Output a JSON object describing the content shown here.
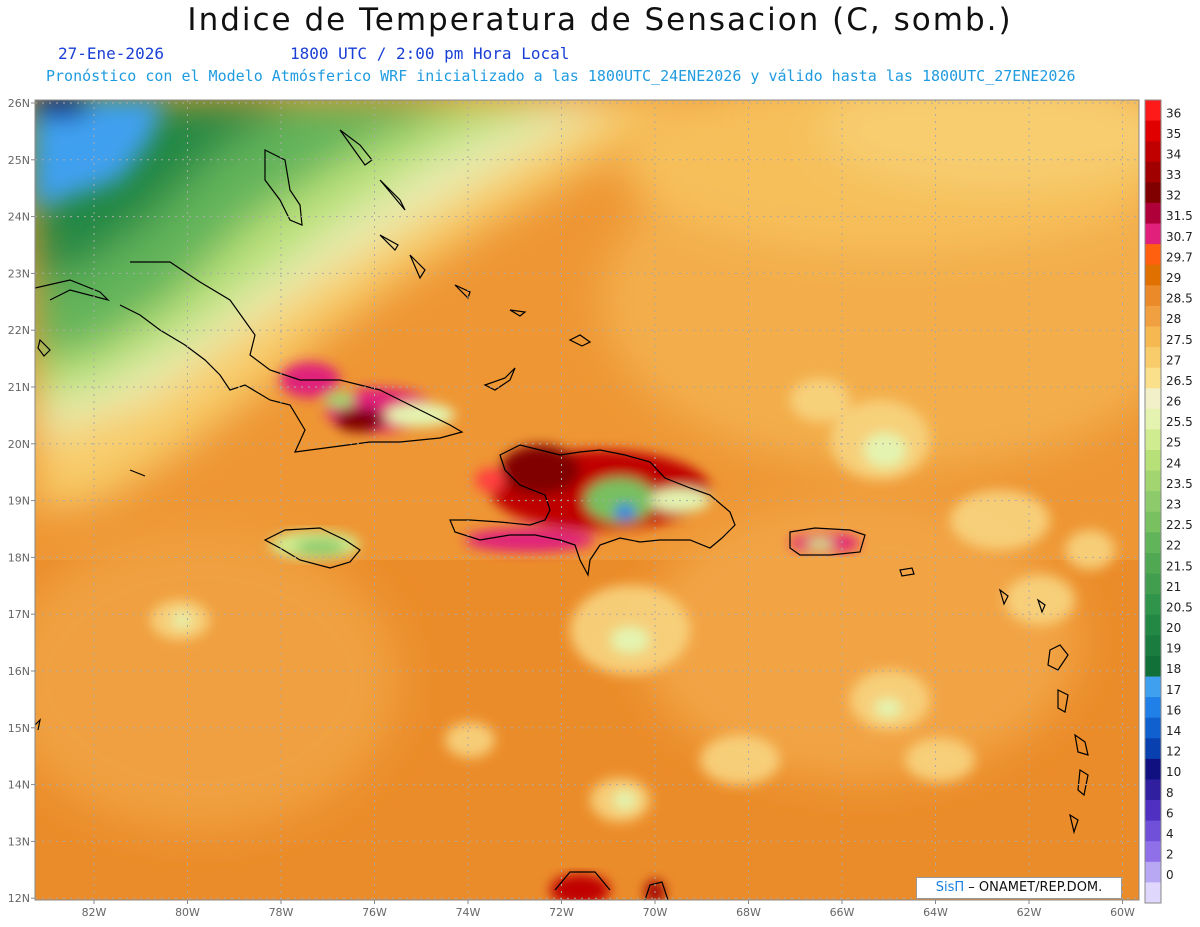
{
  "header": {
    "title": "Indice de Temperatura de Sensacion (C, somb.)",
    "date": "27-Ene-2026",
    "time": "1800 UTC / 2:00 pm Hora Local",
    "model_info": "Pronóstico con el Modelo Atmósferico WRF inicializado a las 1800UTC_24ENE2026 y válido hasta las  1800UTC_27ENE2026"
  },
  "map": {
    "lat_labels": [
      "26N",
      "25N",
      "24N",
      "23N",
      "22N",
      "21N",
      "20N",
      "19N",
      "18N",
      "17N",
      "16N",
      "15N",
      "14N",
      "13N",
      "12N"
    ],
    "lon_labels": [
      "82W",
      "80W",
      "78W",
      "76W",
      "74W",
      "72W",
      "70W",
      "68W",
      "66W",
      "64W",
      "62W",
      "60W"
    ]
  },
  "colorbar": {
    "labels": [
      "36",
      "35",
      "34",
      "33",
      "32",
      "31.5",
      "30.7",
      "29.7",
      "29",
      "28.5",
      "28",
      "27.5",
      "27",
      "26.5",
      "26",
      "25.5",
      "25",
      "24",
      "23.5",
      "23",
      "22.5",
      "22",
      "21.5",
      "21",
      "20.5",
      "20",
      "19",
      "18",
      "17",
      "16",
      "14",
      "12",
      "10",
      "8",
      "6",
      "4",
      "2",
      "0"
    ],
    "colors": [
      "#ff1a1a",
      "#e00000",
      "#c00000",
      "#a00000",
      "#800000",
      "#b0003a",
      "#e0207a",
      "#ff6010",
      "#e07000",
      "#ea8a28",
      "#f0a040",
      "#f6b850",
      "#f8cc6a",
      "#fae08a",
      "#f2f0c8",
      "#e4f4b0",
      "#d0ec90",
      "#b8e078",
      "#a2d470",
      "#8cca6c",
      "#78c060",
      "#62b45a",
      "#50a852",
      "#409e4e",
      "#30944a",
      "#228844",
      "#1a7c3e",
      "#107038",
      "#40a0f0",
      "#2080e8",
      "#1060d0",
      "#0840b0",
      "#101080",
      "#3020a0",
      "#5030c0",
      "#7050d8",
      "#9070e8",
      "#b8a8f4",
      "#e0d8fc"
    ]
  },
  "credit": {
    "brand": "SisΠ",
    "org": " – ONAMET/REP.DOM."
  }
}
